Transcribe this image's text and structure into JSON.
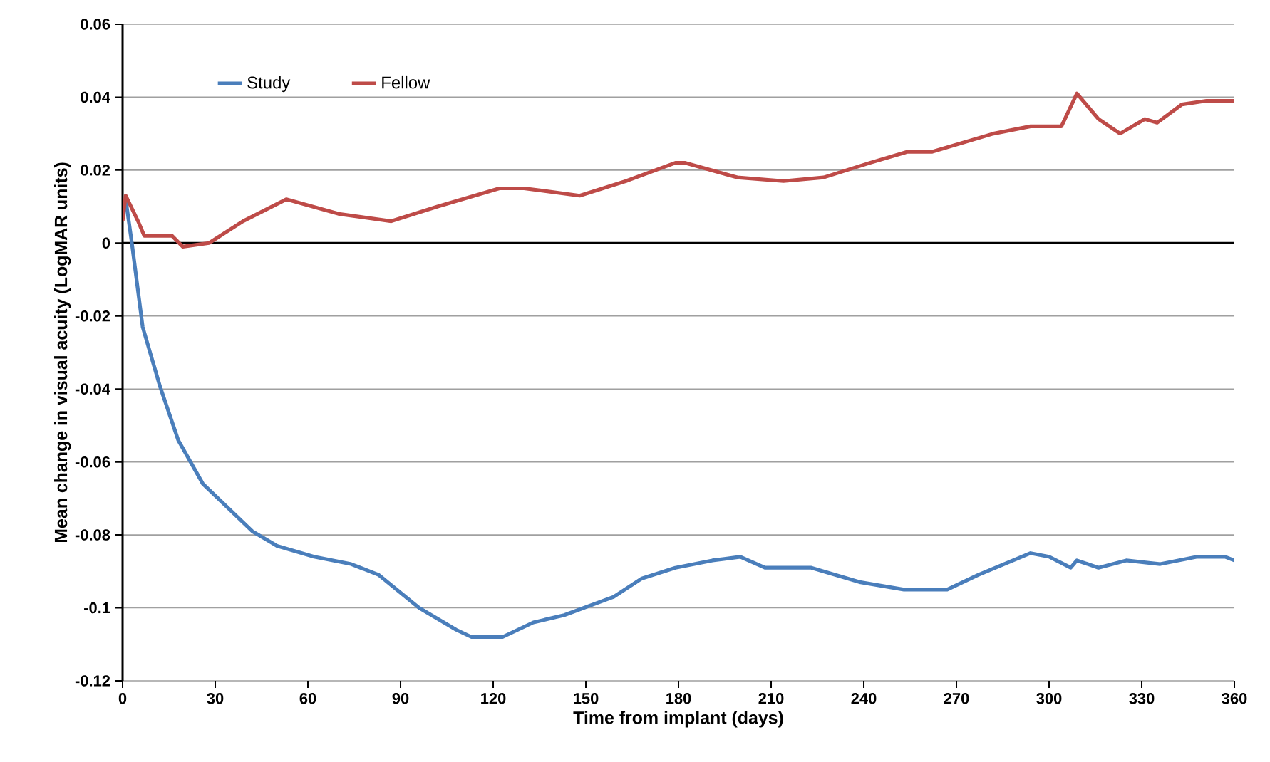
{
  "chart_data": {
    "type": "line",
    "xlabel": "Time from implant (days)",
    "ylabel": "Mean change in visual acuity (LogMAR units)",
    "xlim": [
      0,
      360
    ],
    "xticks": [
      0,
      30,
      60,
      90,
      120,
      150,
      180,
      210,
      240,
      270,
      300,
      330,
      360
    ],
    "ylim": [
      -0.12,
      0.06
    ],
    "yticks": [
      0.06,
      0.04,
      0.02,
      0,
      -0.02,
      -0.04,
      -0.06,
      -0.08,
      -0.1,
      -0.12
    ],
    "grid": "y",
    "legend": "top left",
    "marker": "none",
    "line_style": "solid",
    "series": [
      {
        "name": "Study",
        "color": "#4a7ebb",
        "x": [
          0,
          1,
          3,
          6.5,
          12,
          18,
          26,
          42,
          50,
          62,
          74,
          83,
          96,
          108,
          113,
          123,
          133,
          143,
          159,
          168,
          179,
          191,
          200,
          208,
          223,
          239,
          253,
          267,
          277,
          294,
          300,
          307,
          309,
          316,
          325,
          336,
          348,
          357,
          360
        ],
        "values": [
          0.008,
          0.012,
          0.0,
          -0.023,
          -0.039,
          -0.054,
          -0.066,
          -0.079,
          -0.083,
          -0.086,
          -0.088,
          -0.091,
          -0.1,
          -0.106,
          -0.108,
          -0.108,
          -0.104,
          -0.102,
          -0.097,
          -0.092,
          -0.089,
          -0.087,
          -0.086,
          -0.089,
          -0.089,
          -0.093,
          -0.095,
          -0.095,
          -0.091,
          -0.085,
          -0.086,
          -0.089,
          -0.087,
          -0.089,
          -0.087,
          -0.088,
          -0.086,
          -0.086,
          -0.087
        ]
      },
      {
        "name": "Fellow",
        "color": "#be4b48",
        "x": [
          0,
          1,
          5,
          7,
          16,
          19.5,
          28,
          39,
          53,
          70,
          87,
          102,
          122,
          130,
          148,
          163,
          179,
          182,
          199,
          214,
          227,
          242,
          254,
          262,
          282,
          294,
          304,
          309,
          316,
          323,
          331,
          335,
          343,
          351,
          360
        ],
        "values": [
          0.006,
          0.013,
          0.006,
          0.002,
          0.002,
          -0.001,
          0.0,
          0.006,
          0.012,
          0.008,
          0.006,
          0.01,
          0.015,
          0.015,
          0.013,
          0.017,
          0.022,
          0.022,
          0.018,
          0.017,
          0.018,
          0.022,
          0.025,
          0.025,
          0.03,
          0.032,
          0.032,
          0.041,
          0.034,
          0.03,
          0.034,
          0.033,
          0.038,
          0.039,
          0.039
        ]
      }
    ]
  }
}
